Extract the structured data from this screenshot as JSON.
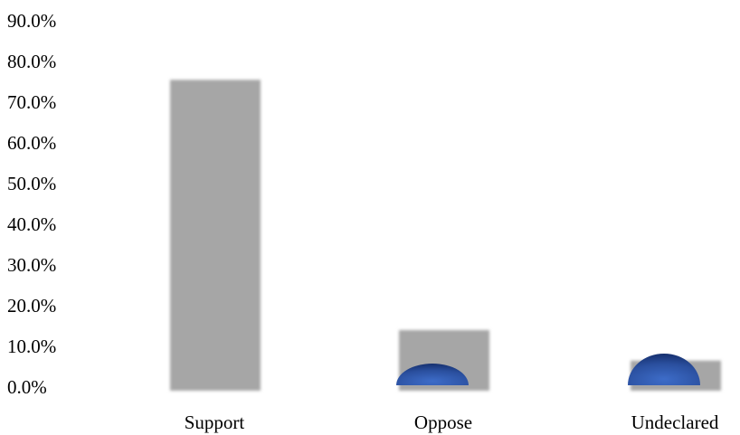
{
  "chart_data": {
    "type": "bar",
    "categories": [
      "Support",
      "Oppose",
      "Undeclared"
    ],
    "values": [
      75.5,
      14.0,
      6.5
    ],
    "y_tick_labels": [
      "0.0%",
      "10.0%",
      "20.0%",
      "30.0%",
      "40.0%",
      "50.0%",
      "60.0%",
      "70.0%",
      "80.0%",
      "90.0%"
    ],
    "ylim": [
      0,
      90
    ],
    "title": "",
    "xlabel": "",
    "ylabel": "",
    "grid": false,
    "legend": "none",
    "colors": {
      "bar": "#a6a6a6",
      "marker": "#2f55a4",
      "marker_dark": "#1a3578"
    }
  }
}
